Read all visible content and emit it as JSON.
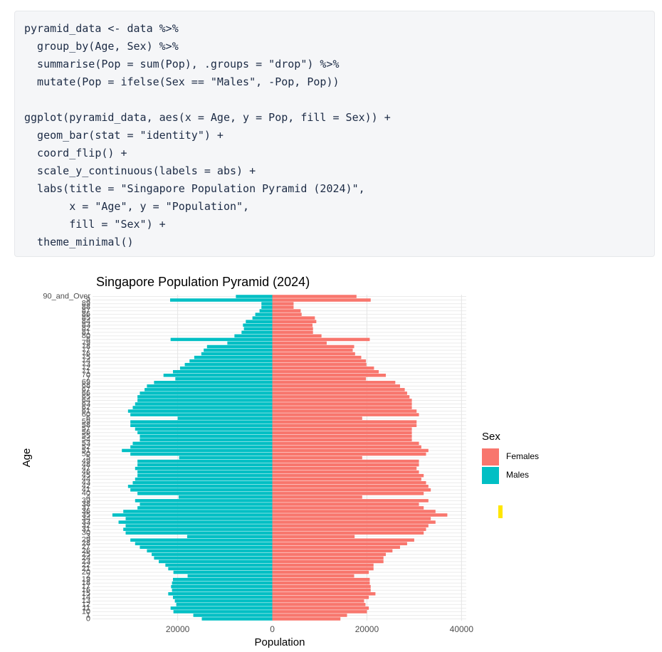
{
  "code": {
    "lines": [
      "pyramid_data <- data %>%",
      "  group_by(Age, Sex) %>%",
      "  summarise(Pop = sum(Pop), .groups = \"drop\") %>%",
      "  mutate(Pop = ifelse(Sex == \"Males\", -Pop, Pop))",
      "",
      "ggplot(pyramid_data, aes(x = Age, y = Pop, fill = Sex)) +",
      "  geom_bar(stat = \"identity\") +",
      "  coord_flip() +",
      "  scale_y_continuous(labels = abs) +",
      "  labs(title = \"Singapore Population Pyramid (2024)\",",
      "       x = \"Age\", y = \"Population\",",
      "       fill = \"Sex\") +",
      "  theme_minimal()"
    ]
  },
  "chart_data": {
    "type": "bar",
    "horizontal": true,
    "stacked": true,
    "title": "Singapore Population Pyramid (2024)",
    "x_label": "Age",
    "y_label": "Population",
    "legend_title": "Sex",
    "legend_position": "right",
    "grid": true,
    "categories": [
      "0",
      "1",
      "10",
      "11",
      "12",
      "13",
      "14",
      "15",
      "16",
      "17",
      "18",
      "19",
      "2",
      "20",
      "21",
      "22",
      "23",
      "24",
      "25",
      "26",
      "27",
      "28",
      "29",
      "3",
      "30",
      "31",
      "32",
      "33",
      "34",
      "35",
      "36",
      "37",
      "38",
      "39",
      "4",
      "40",
      "41",
      "42",
      "43",
      "44",
      "45",
      "46",
      "47",
      "48",
      "49",
      "5",
      "50",
      "51",
      "52",
      "53",
      "54",
      "55",
      "56",
      "57",
      "58",
      "59",
      "6",
      "60",
      "61",
      "62",
      "63",
      "64",
      "65",
      "66",
      "67",
      "68",
      "69",
      "7",
      "70",
      "71",
      "72",
      "73",
      "74",
      "75",
      "76",
      "77",
      "78",
      "79",
      "8",
      "80",
      "81",
      "82",
      "83",
      "84",
      "85",
      "86",
      "87",
      "88",
      "89",
      "9",
      "90_and_Over"
    ],
    "series": [
      {
        "name": "Females",
        "color": "#F8766D",
        "values": [
          14400,
          15800,
          20000,
          20400,
          19700,
          19400,
          20400,
          21800,
          20800,
          20800,
          20600,
          20600,
          17300,
          20400,
          21400,
          21400,
          23500,
          23500,
          24000,
          25400,
          27000,
          28500,
          30000,
          17400,
          32000,
          32500,
          33000,
          34500,
          33500,
          37000,
          34500,
          32000,
          31000,
          33000,
          19000,
          32000,
          33500,
          33000,
          32500,
          31500,
          32000,
          31000,
          30500,
          31000,
          31000,
          19000,
          32500,
          33000,
          31500,
          31000,
          29500,
          29500,
          29500,
          29500,
          30500,
          30500,
          19000,
          31000,
          30500,
          29500,
          29500,
          29500,
          29000,
          28500,
          28000,
          27000,
          26000,
          19800,
          24000,
          22500,
          21500,
          19900,
          19800,
          18800,
          17500,
          17000,
          17300,
          11500,
          20600,
          10400,
          8600,
          8600,
          8500,
          9300,
          9000,
          6200,
          6000,
          4500,
          4500,
          20800,
          17800
        ]
      },
      {
        "name": "Males",
        "color": "#00BFC4",
        "values": [
          -14900,
          -16700,
          -20900,
          -21500,
          -20300,
          -20600,
          -21000,
          -22000,
          -21200,
          -21400,
          -21200,
          -21000,
          -17900,
          -20900,
          -22000,
          -22600,
          -24000,
          -25000,
          -25500,
          -26500,
          -28000,
          -29000,
          -30000,
          -18000,
          -31000,
          -31500,
          -31000,
          -32500,
          -31000,
          -33800,
          -31500,
          -28500,
          -28000,
          -29000,
          -19800,
          -28500,
          -30000,
          -30500,
          -29500,
          -29000,
          -28500,
          -28500,
          -29000,
          -28500,
          -28500,
          -19700,
          -30000,
          -31800,
          -30000,
          -29500,
          -28000,
          -28000,
          -28500,
          -29000,
          -30000,
          -30000,
          -20000,
          -30000,
          -30500,
          -29500,
          -29000,
          -28500,
          -28500,
          -28000,
          -27000,
          -26500,
          -25000,
          -20500,
          -23000,
          -21000,
          -19500,
          -18500,
          -17500,
          -16500,
          -15000,
          -14500,
          -13800,
          -9500,
          -21500,
          -8000,
          -6500,
          -6000,
          -6200,
          -5600,
          -4200,
          -3600,
          -2700,
          -2300,
          -2300,
          -21600,
          -7700
        ]
      }
    ],
    "xlim": [
      -38000,
      41000
    ],
    "xticks": [
      {
        "value": -20000,
        "label": "20000"
      },
      0,
      20000,
      40000
    ]
  }
}
